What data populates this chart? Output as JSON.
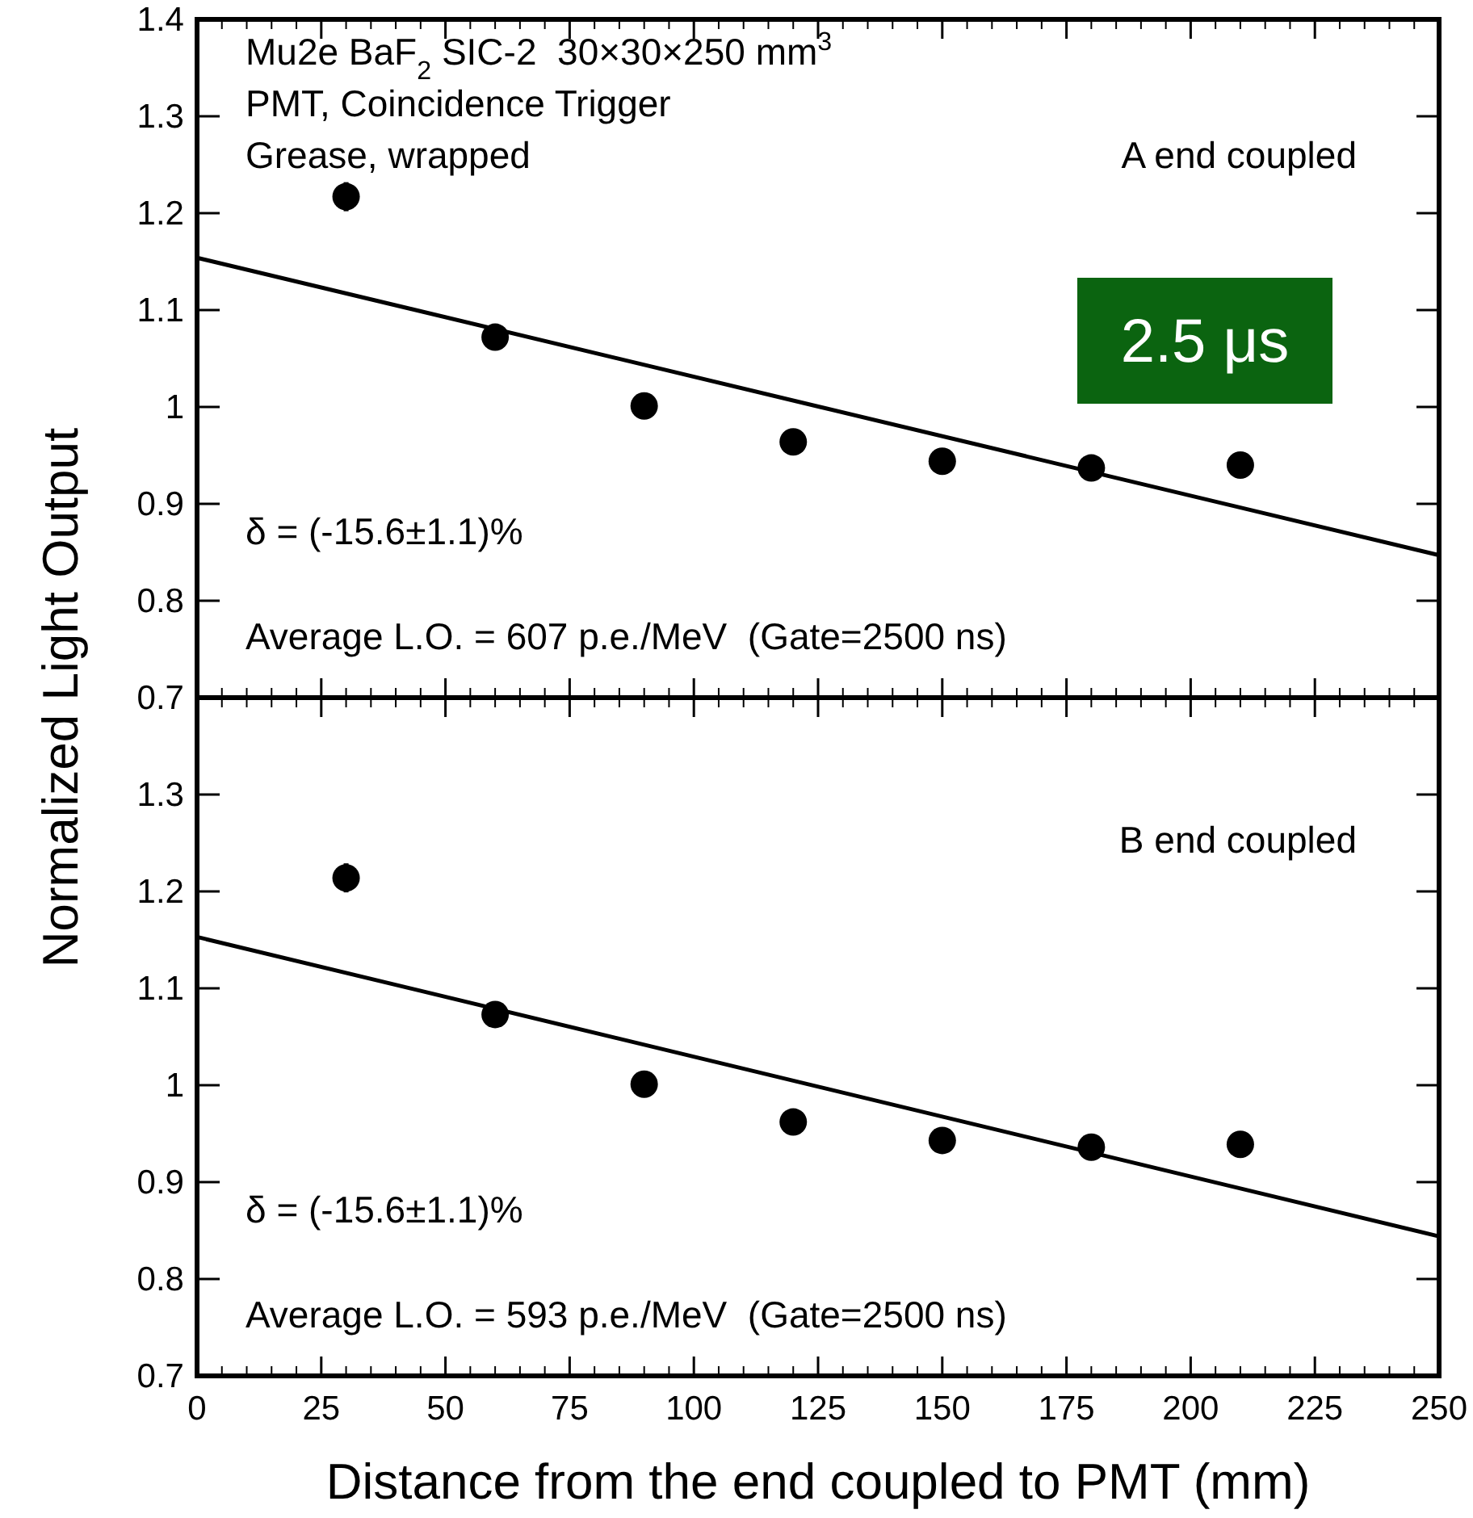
{
  "chart_data": [
    {
      "type": "scatter",
      "ylabel": "Normalized Light Output",
      "xlim": [
        0,
        250
      ],
      "xticks": [
        0,
        25,
        50,
        75,
        100,
        125,
        150,
        175,
        200,
        225,
        250
      ],
      "ylim": [
        0.7,
        1.4
      ],
      "yticks": [
        0.7,
        0.8,
        0.9,
        1,
        1.1,
        1.2,
        1.3,
        1.4
      ],
      "tick_labels": "y",
      "grid": false,
      "annotations": [
        "Mu2e BaF$_{2}$ SIC-2  30×30×250 mm$^{3}$",
        "PMT, Coincidence Trigger",
        "Grease, wrapped",
        "A end coupled",
        "2.5 μs",
        "δ = (-15.6±1.1)%",
        "Average L.O. = 607 p.e./MeV  (Gate=2500 ns)"
      ],
      "series": [
        {
          "color": "#000000",
          "marker": "circle",
          "x": [
            30,
            60,
            90,
            120,
            150,
            180,
            210
          ],
          "values": [
            1.217,
            1.072,
            1.001,
            0.964,
            0.944,
            0.937,
            0.94
          ],
          "errors": [
            0.015,
            0.012,
            null,
            null,
            null,
            null,
            null
          ]
        },
        {
          "type": "line",
          "color": "#000000",
          "x": [
            0,
            250
          ],
          "values": [
            1.154,
            0.847
          ]
        }
      ]
    },
    {
      "type": "scatter",
      "xlabel": "Distance from the end coupled to PMT (mm)",
      "xlim": [
        0,
        250
      ],
      "xticks": [
        0,
        25,
        50,
        75,
        100,
        125,
        150,
        175,
        200,
        225,
        250
      ],
      "ylim": [
        0.7,
        1.4
      ],
      "yticks": [
        0.7,
        0.8,
        0.9,
        1,
        1.1,
        1.2,
        1.3,
        {
          "value": 1.4,
          "label": null
        }
      ],
      "grid": false,
      "annotations": [
        "B end coupled",
        "δ = (-15.6±1.1)%",
        "Average L.O. = 593 p.e./MeV  (Gate=2500 ns)"
      ],
      "series": [
        {
          "color": "#000000",
          "marker": "circle",
          "x": [
            30,
            60,
            90,
            120,
            150,
            180,
            210
          ],
          "values": [
            1.214,
            1.073,
            1.001,
            0.962,
            0.943,
            0.936,
            0.939
          ],
          "errors": [
            0.015,
            0.012,
            null,
            null,
            null,
            null,
            null
          ]
        },
        {
          "type": "line",
          "color": "#000000",
          "x": [
            0,
            250
          ],
          "values": [
            1.153,
            0.844
          ]
        }
      ]
    }
  ]
}
